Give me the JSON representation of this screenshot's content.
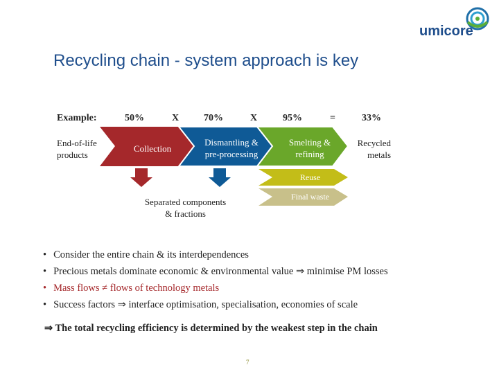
{
  "logo": {
    "text": "umicore"
  },
  "title": "Recycling chain - system approach is key",
  "header": {
    "example": "Example:",
    "step1": "50%",
    "op1": "X",
    "step2": "70%",
    "op2": "X",
    "step3": "95%",
    "eq": "=",
    "result": "33%"
  },
  "chain": {
    "input": "End-of-life products",
    "collection": "Collection",
    "dismantling_line1": "Dismantling &",
    "dismantling_line2": "pre-processing",
    "smelting_line1": "Smelting &",
    "smelting_line2": "refining",
    "output": "Recycled metals",
    "reuse": "Reuse",
    "final_waste": "Final waste",
    "separated_line1": "Separated components",
    "separated_line2": "& fractions"
  },
  "colors": {
    "collection": "#a5282b",
    "dismantling": "#0f5a96",
    "smelting": "#6aa72a",
    "reuse": "#c3bd18",
    "final_waste": "#c8c08a"
  },
  "bullets": [
    "Consider the entire chain & its interdependences",
    "Precious metals dominate economic & environmental value ⇒ minimise PM losses",
    "Mass flows ≠ flows of technology metals",
    "Success factors ⇒ interface optimisation, specialisation, economies of scale"
  ],
  "conclusion": "⇒ The total recycling efficiency is determined by the weakest step in the chain",
  "page_number": "7"
}
